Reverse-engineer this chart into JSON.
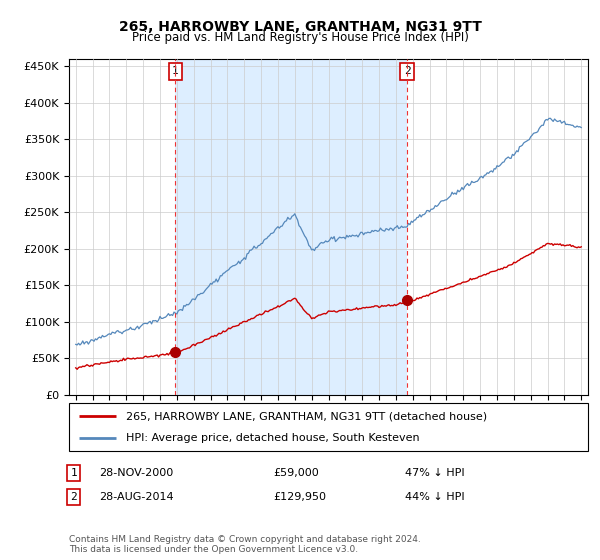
{
  "title": "265, HARROWBY LANE, GRANTHAM, NG31 9TT",
  "subtitle": "Price paid vs. HM Land Registry's House Price Index (HPI)",
  "property_label": "265, HARROWBY LANE, GRANTHAM, NG31 9TT (detached house)",
  "hpi_label": "HPI: Average price, detached house, South Kesteven",
  "sale1_date": "28-NOV-2000",
  "sale1_price": "£59,000",
  "sale1_hpi_text": "47% ↓ HPI",
  "sale2_date": "28-AUG-2014",
  "sale2_price": "£129,950",
  "sale2_hpi_text": "44% ↓ HPI",
  "footnote": "Contains HM Land Registry data © Crown copyright and database right 2024.\nThis data is licensed under the Open Government Licence v3.0.",
  "property_color": "#cc0000",
  "hpi_color": "#5588bb",
  "hpi_fill_color": "#ddeeff",
  "sale_marker_color": "#aa0000",
  "vline_color": "#ee3333",
  "ylim": [
    0,
    460000
  ],
  "yticks": [
    0,
    50000,
    100000,
    150000,
    200000,
    250000,
    300000,
    350000,
    400000,
    450000
  ],
  "sale1_x": 2000.92,
  "sale1_y": 59000,
  "sale2_x": 2014.67,
  "sale2_y": 129950,
  "xmin": 1995,
  "xmax": 2025
}
